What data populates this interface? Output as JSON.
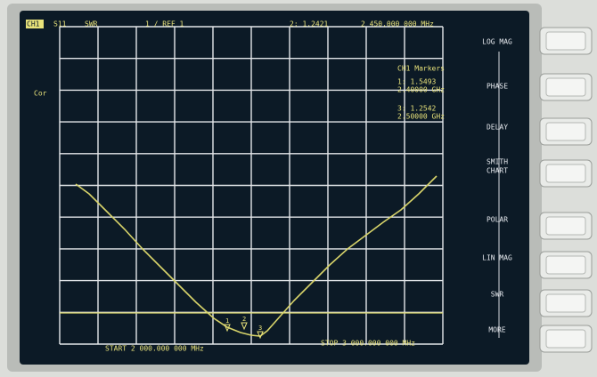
{
  "header": {
    "channel": "CH1",
    "parameter": "S11",
    "format": "SWR",
    "scale": "1 / REF 1",
    "active_marker": "2: 1.2421",
    "active_freq": "2 450.000 000 MHz"
  },
  "status": "Cor",
  "markers": {
    "title": "CH1 Markers",
    "items": [
      {
        "value": "1: 1.5493",
        "freq": "2.40000 GHz"
      },
      {
        "value": "3: 1.2542",
        "freq": "2.50000 GHz"
      }
    ]
  },
  "trace_markers": [
    "1",
    "2",
    "3"
  ],
  "footer": {
    "start": "START 2 000.000 000 MHz",
    "stop": "STOP 3 000.000 000 MHz"
  },
  "softkeys": [
    [
      "LOG MAG"
    ],
    [
      "PHASE"
    ],
    [
      "DELAY"
    ],
    [
      "SMITH",
      "CHART"
    ],
    [
      "POLAR"
    ],
    [
      "LIN MAG"
    ],
    [
      "SWR"
    ],
    [
      "MORE"
    ]
  ]
}
